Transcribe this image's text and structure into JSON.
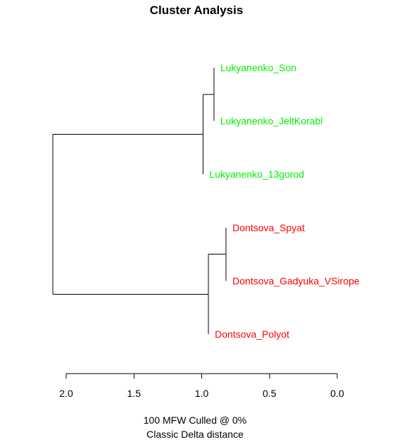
{
  "chart_data": {
    "type": "dendrogram",
    "title": "Cluster Analysis",
    "orientation": "horizontal",
    "x_axis": {
      "reversed": true,
      "ticks": [
        2.0,
        1.5,
        1.0,
        0.5,
        0.0
      ],
      "tick_labels": [
        "2.0",
        "1.5",
        "1.0",
        "0.5",
        "0.0"
      ]
    },
    "caption_lines": [
      "100 MFW  Culled @ 0%",
      "Classic Delta distance"
    ],
    "leaves": [
      {
        "label": "Lukyanenko_Son",
        "group": "Lukyanenko"
      },
      {
        "label": "Lukyanenko_JeltKorabl",
        "group": "Lukyanenko"
      },
      {
        "label": "Lukyanenko_13gorod",
        "group": "Lukyanenko"
      },
      {
        "label": "Dontsova_Spyat",
        "group": "Dontsova"
      },
      {
        "label": "Dontsova_Gadyuka_VSirope",
        "group": "Dontsova"
      },
      {
        "label": "Dontsova_Polyot",
        "group": "Dontsova"
      }
    ],
    "group_colors": {
      "Lukyanenko": "#00ee00",
      "Dontsova": "#ff0000"
    },
    "merges": [
      {
        "left": "Lukyanenko_Son",
        "right": "Lukyanenko_JeltKorabl",
        "height": 0.91
      },
      {
        "left": "m1",
        "right": "Lukyanenko_13gorod",
        "height": 0.99
      },
      {
        "left": "Dontsova_Spyat",
        "right": "Dontsova_Gadyuka_VSirope",
        "height": 0.82
      },
      {
        "left": "m3",
        "right": "Dontsova_Polyot",
        "height": 0.95
      },
      {
        "left": "m2",
        "right": "m4",
        "height": 2.1
      }
    ]
  }
}
